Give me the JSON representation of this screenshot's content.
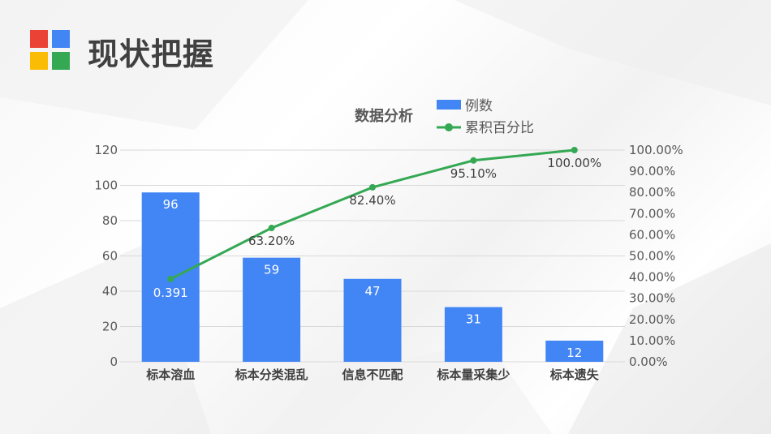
{
  "page": {
    "title": "现状把握"
  },
  "logo": {
    "colors": [
      "#ea4335",
      "#4285f4",
      "#fbbc05",
      "#34a853"
    ]
  },
  "chart_data": {
    "type": "bar",
    "title": "数据分析",
    "categories": [
      "标本溶血",
      "标本分类混乱",
      "信息不匹配",
      "标本量采集少",
      "标本遗失"
    ],
    "series": [
      {
        "name": "例数",
        "type": "bar",
        "axis": "left",
        "color": "#4285f4",
        "values": [
          96,
          59,
          47,
          31,
          12
        ],
        "labels": [
          "96",
          "59",
          "47",
          "31",
          "12"
        ]
      },
      {
        "name": "累积百分比",
        "type": "line",
        "axis": "right",
        "color": "#34a853",
        "values": [
          0.391,
          0.632,
          0.824,
          0.951,
          1.0
        ],
        "labels": [
          "0.391",
          "63.20%",
          "82.40%",
          "95.10%",
          "100.00%"
        ]
      }
    ],
    "y_left": {
      "range": [
        0,
        120
      ],
      "ticks": [
        "0",
        "20",
        "40",
        "60",
        "80",
        "100",
        "120"
      ]
    },
    "y_right": {
      "range": [
        0,
        1
      ],
      "ticks": [
        "0.00%",
        "10.00%",
        "20.00%",
        "30.00%",
        "40.00%",
        "50.00%",
        "60.00%",
        "70.00%",
        "80.00%",
        "90.00%",
        "100.00%"
      ]
    },
    "grid": true,
    "legend": "top-right"
  }
}
